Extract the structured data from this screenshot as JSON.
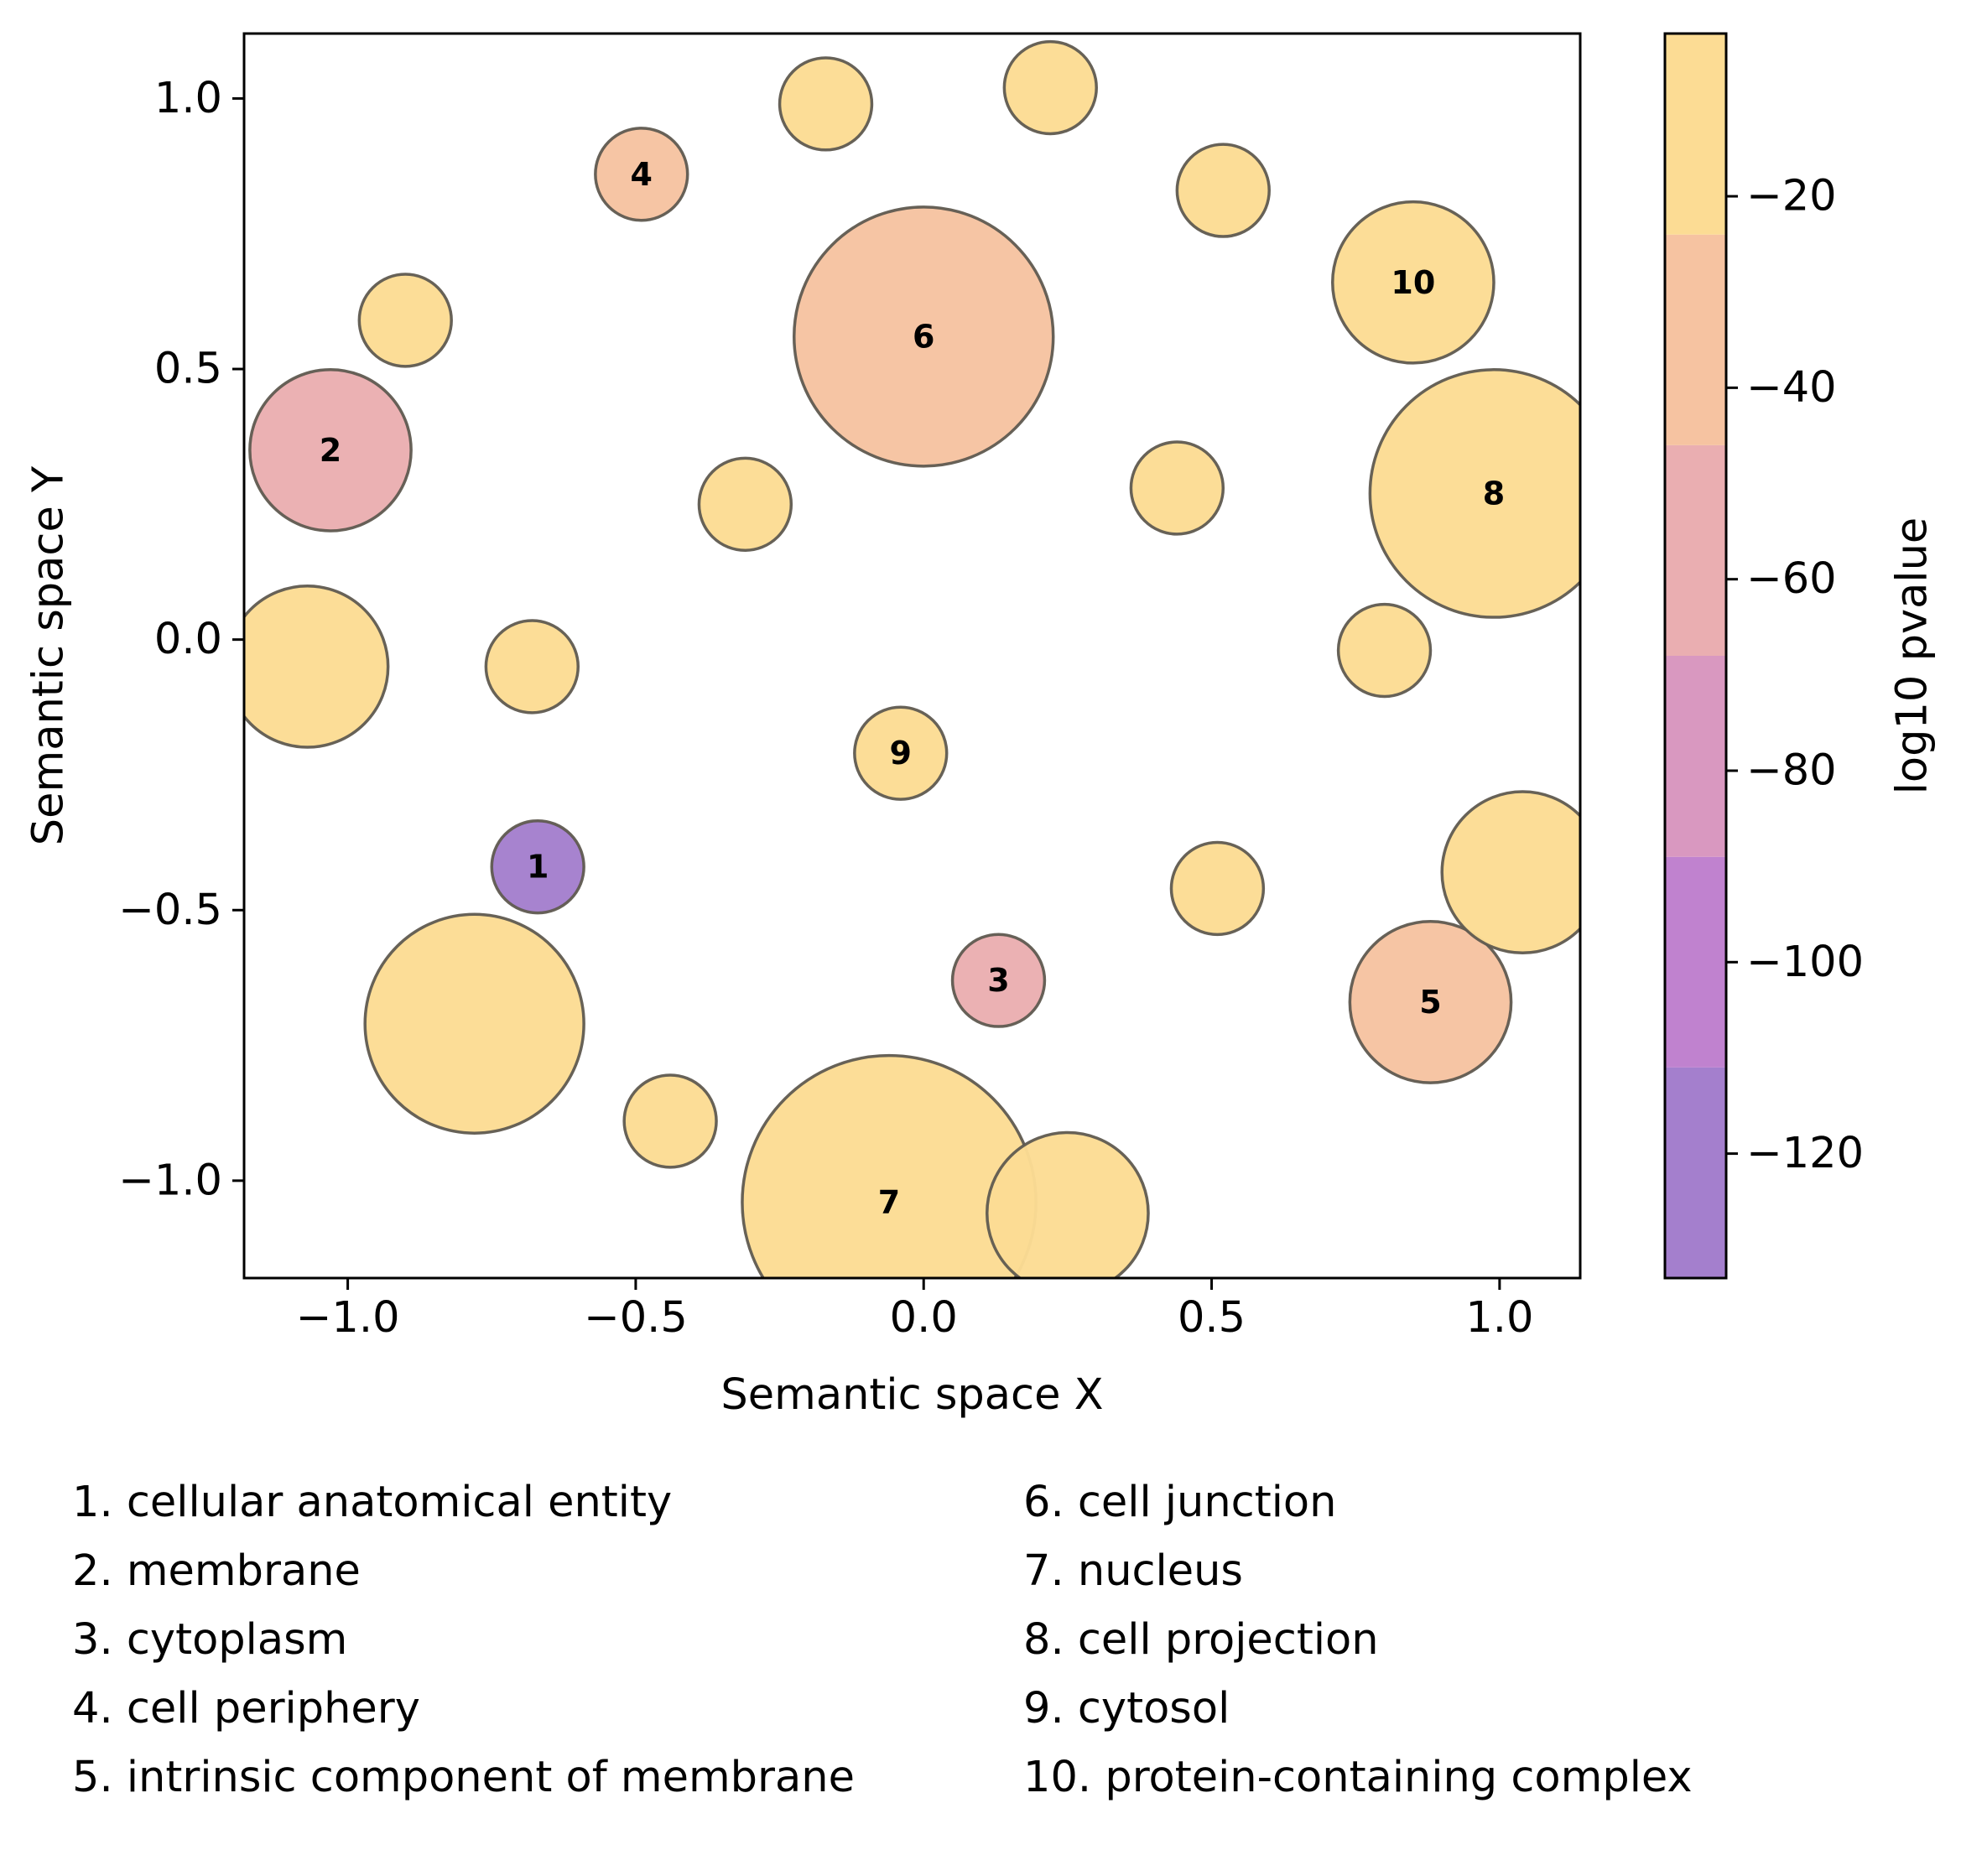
{
  "chart_data": {
    "type": "scatter",
    "xlabel": "Semantic space X",
    "ylabel": "Semantic space Y",
    "xlim": [
      -1.18,
      1.14
    ],
    "ylim": [
      -1.18,
      1.12
    ],
    "xticks": [
      -1.0,
      -0.5,
      0.0,
      0.5,
      1.0
    ],
    "xtick_labels": [
      "−1.0",
      "−0.5",
      "0.0",
      "0.5",
      "1.0"
    ],
    "yticks": [
      1.0,
      0.5,
      0.0,
      -0.5,
      -1.0
    ],
    "ytick_labels": [
      "1.0",
      "0.5",
      "0.0",
      "−0.5",
      "−1.0"
    ],
    "grid": false,
    "colorbar": {
      "label": "log10 pvalue",
      "range": [
        -133,
        -3
      ],
      "ticks": [
        -20,
        -40,
        -60,
        -80,
        -100,
        -120
      ],
      "tick_labels": [
        "−20",
        "−40",
        "−60",
        "−80",
        "−100",
        "−120"
      ],
      "bands": [
        {
          "from": -133,
          "to": -111,
          "color": "#a47fcd"
        },
        {
          "from": -111,
          "to": -89,
          "color": "#c082cf"
        },
        {
          "from": -89,
          "to": -68,
          "color": "#d998c0"
        },
        {
          "from": -68,
          "to": -46,
          "color": "#eaaeb1"
        },
        {
          "from": -46,
          "to": -24,
          "color": "#f6c3a1"
        },
        {
          "from": -24,
          "to": -3,
          "color": "#fcdc94"
        }
      ]
    },
    "points": [
      {
        "label": "1",
        "x": -0.67,
        "y": -0.42,
        "radius": 0.08,
        "log10_pvalue": -130
      },
      {
        "label": "2",
        "x": -1.03,
        "y": 0.35,
        "radius": 0.14,
        "log10_pvalue": -60
      },
      {
        "label": "3",
        "x": 0.13,
        "y": -0.63,
        "radius": 0.08,
        "log10_pvalue": -60
      },
      {
        "label": "4",
        "x": -0.49,
        "y": 0.86,
        "radius": 0.08,
        "log10_pvalue": -40
      },
      {
        "label": "5",
        "x": 0.88,
        "y": -0.67,
        "radius": 0.14,
        "log10_pvalue": -40
      },
      {
        "label": "6",
        "x": 0.0,
        "y": 0.56,
        "radius": 0.225,
        "log10_pvalue": -35
      },
      {
        "label": "7",
        "x": -0.06,
        "y": -1.04,
        "radius": 0.255,
        "log10_pvalue": -10
      },
      {
        "label": "8",
        "x": 0.99,
        "y": 0.27,
        "radius": 0.215,
        "log10_pvalue": -10
      },
      {
        "label": "9",
        "x": -0.04,
        "y": -0.21,
        "radius": 0.08,
        "log10_pvalue": -10
      },
      {
        "label": "10",
        "x": 0.85,
        "y": 0.66,
        "radius": 0.14,
        "log10_pvalue": -10
      },
      {
        "label": "",
        "x": -0.17,
        "y": 0.99,
        "radius": 0.08,
        "log10_pvalue": -10
      },
      {
        "label": "",
        "x": 0.22,
        "y": 1.02,
        "radius": 0.08,
        "log10_pvalue": -10
      },
      {
        "label": "",
        "x": 0.52,
        "y": 0.83,
        "radius": 0.08,
        "log10_pvalue": -10
      },
      {
        "label": "",
        "x": -0.9,
        "y": 0.59,
        "radius": 0.08,
        "log10_pvalue": -10
      },
      {
        "label": "",
        "x": -0.31,
        "y": 0.25,
        "radius": 0.08,
        "log10_pvalue": -10
      },
      {
        "label": "",
        "x": 0.44,
        "y": 0.28,
        "radius": 0.08,
        "log10_pvalue": -10
      },
      {
        "label": "",
        "x": -1.07,
        "y": -0.05,
        "radius": 0.14,
        "log10_pvalue": -10
      },
      {
        "label": "",
        "x": -0.68,
        "y": -0.05,
        "radius": 0.08,
        "log10_pvalue": -10
      },
      {
        "label": "",
        "x": 0.8,
        "y": -0.02,
        "radius": 0.08,
        "log10_pvalue": -10
      },
      {
        "label": "",
        "x": 1.04,
        "y": -0.43,
        "radius": 0.14,
        "log10_pvalue": -10
      },
      {
        "label": "",
        "x": 0.51,
        "y": -0.46,
        "radius": 0.08,
        "log10_pvalue": -10
      },
      {
        "label": "",
        "x": -0.78,
        "y": -0.71,
        "radius": 0.19,
        "log10_pvalue": -10
      },
      {
        "label": "",
        "x": -0.44,
        "y": -0.89,
        "radius": 0.08,
        "log10_pvalue": -10
      },
      {
        "label": "",
        "x": 0.25,
        "y": -1.06,
        "radius": 0.14,
        "log10_pvalue": -10
      }
    ],
    "legend_entries": [
      "1. cellular anatomical entity",
      "2. membrane",
      "3. cytoplasm",
      "4. cell periphery",
      "5. intrinsic component of membrane",
      "6. cell junction",
      "7. nucleus",
      "8. cell projection",
      "9. cytosol",
      "10. protein-containing complex"
    ]
  }
}
